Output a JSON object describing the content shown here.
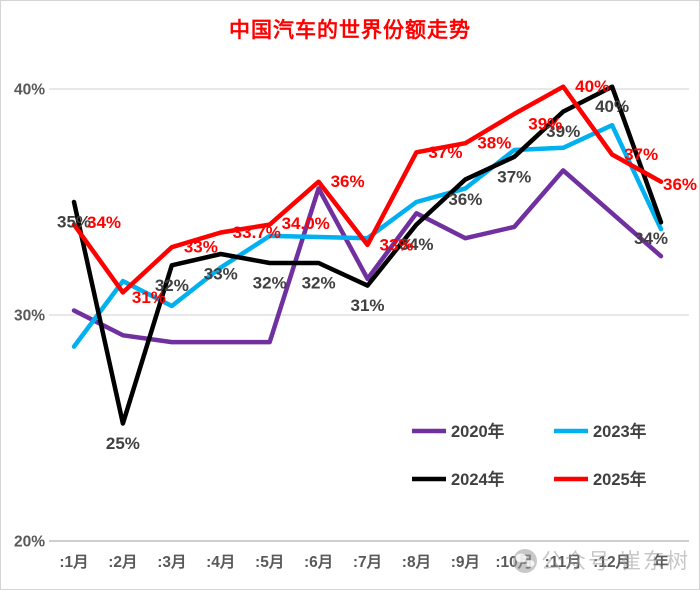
{
  "chart_data": {
    "type": "line",
    "title": "中国汽车的世界份额走势",
    "title_color": "#FF0000",
    "categories": [
      ":1月",
      ":2月",
      ":3月",
      ":4月",
      ":5月",
      ":6月",
      ":7月",
      ":8月",
      ":9月",
      ":10月",
      ":11月",
      ":12月",
      "年"
    ],
    "y_axis": {
      "min": 20,
      "max": 40,
      "ticks": [
        {
          "label": "40%",
          "value": 40
        },
        {
          "label": "30%",
          "value": 30
        },
        {
          "label": "20%",
          "value": 20
        }
      ],
      "gridline_values": [
        40,
        30
      ],
      "axis_value": 20,
      "grid_on": true
    },
    "legend": {
      "position": "inside-bottom-right",
      "rows": 2,
      "items": [
        "2020年",
        "2023年",
        "2024年",
        "2025年"
      ]
    },
    "series": [
      {
        "name": "2020年",
        "color": "#7030A0",
        "values": [
          30.2,
          29.1,
          28.8,
          28.8,
          28.8,
          35.6,
          31.6,
          34.5,
          33.4,
          33.9,
          36.4,
          34.5,
          32.6
        ],
        "labels": null
      },
      {
        "name": "2023年",
        "color": "#00B0F0",
        "values": [
          28.6,
          31.5,
          30.4,
          32.1,
          33.5,
          33.45,
          33.4,
          35.0,
          35.6,
          37.3,
          37.4,
          38.4,
          33.8
        ],
        "labels": null
      },
      {
        "name": "2024年",
        "color": "#000000",
        "values": [
          35.0,
          25.2,
          32.2,
          32.7,
          32.3,
          32.3,
          31.3,
          34.0,
          36.0,
          37.0,
          39.0,
          40.1,
          34.1
        ],
        "labels": [
          "35%",
          "25%",
          "32%",
          "33%",
          "32%",
          "32%",
          "31%",
          "34%",
          "36%",
          "37%",
          "39%",
          "40%",
          "34%"
        ],
        "label_color": "#404040",
        "label_default_offset": [
          0,
          20
        ],
        "label_offsets": {
          "12": [
            -10,
            16
          ]
        }
      },
      {
        "name": "2025年",
        "color": "#FF0000",
        "values": [
          34.0,
          31.0,
          33.0,
          33.65,
          34.0,
          35.9,
          33.1,
          37.2,
          37.6,
          38.9,
          40.1,
          37.1,
          35.9
        ],
        "labels": [
          "34%",
          "31%",
          "33%",
          "33.7%",
          "34.0%",
          "36%",
          "33%",
          "37%",
          "38%",
          "39%",
          "40%",
          "37%",
          "36%"
        ],
        "label_color": "#FF0000",
        "label_default_offset": [
          29,
          0
        ],
        "label_offsets": {
          "0": [
            30,
            -2
          ],
          "1": [
            26,
            5
          ],
          "3": [
            36,
            0
          ],
          "4": [
            36,
            -1
          ],
          "9": [
            31,
            10
          ],
          "12": [
            19,
            3
          ]
        }
      }
    ]
  },
  "watermark": {
    "icon": "wechat-chat-icon",
    "text": "公众号 崔东树"
  },
  "style": {
    "axis_text_color": "#595959",
    "gridline_color": "#d9d9d9",
    "axis_line_color": "#bfbfbf",
    "legend_text_color": "#404040",
    "watermark_color": "#9a9a9a"
  }
}
